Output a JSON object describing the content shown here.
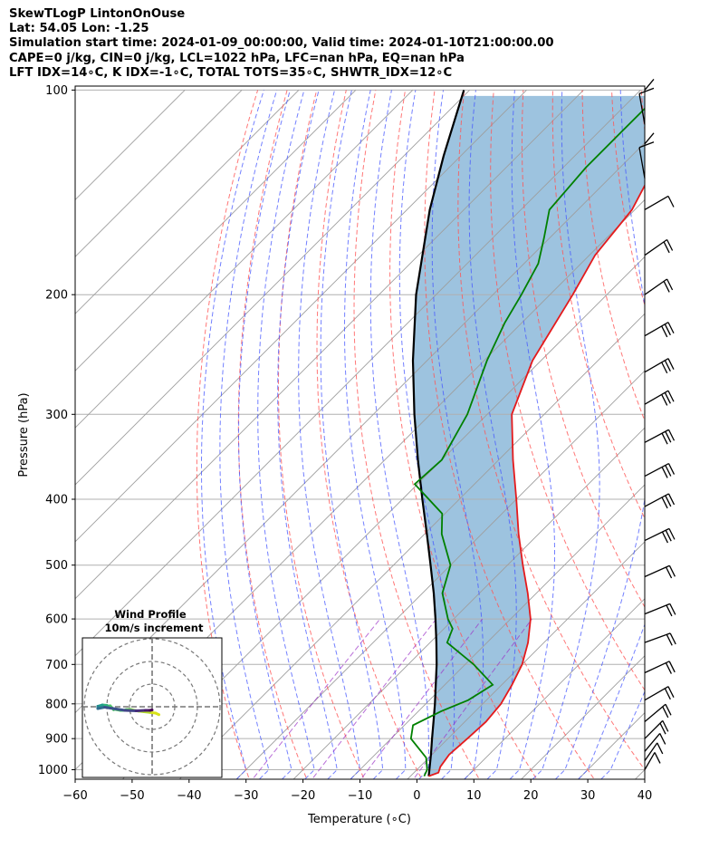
{
  "header": {
    "line1": "SkewTLogP LintonOnOuse",
    "line2": "Lat: 54.05   Lon: -1.25",
    "line3": "Simulation start time: 2024-01-09_00:00:00, Valid time: 2024-01-10T21:00:00.00",
    "line4": "CAPE=0 j/kg, CIN=0 j/kg, LCL=1022 hPa, LFC=nan hPa, EQ=nan hPa",
    "line5": "LFT IDX=14∘C, K IDX=-1∘C, TOTAL TOTS=35∘C, SHWTR_IDX=12∘C"
  },
  "chart_data": {
    "type": "skew-t log-p",
    "xlabel": "Temperature (∘C)",
    "ylabel": "Pressure (hPa)",
    "xlim": [
      -60,
      40
    ],
    "ylim": [
      1050,
      100
    ],
    "x_ticks": [
      "−60",
      "−50",
      "−40",
      "−30",
      "−20",
      "−10",
      "0",
      "10",
      "20",
      "30",
      "40"
    ],
    "x_tick_values": [
      -60,
      -50,
      -40,
      -30,
      -20,
      -10,
      0,
      10,
      20,
      30,
      40
    ],
    "y_ticks": [
      "1000",
      "900",
      "800",
      "700",
      "600",
      "500",
      "400",
      "300",
      "200",
      "100"
    ],
    "y_tick_values": [
      1000,
      900,
      800,
      700,
      600,
      500,
      400,
      300,
      200,
      100
    ],
    "grid": true,
    "colors": {
      "temperature": "#e41a1c",
      "dewpoint": "#008000",
      "parcel": "#000000",
      "cape_fill": "#5b9bc9",
      "isotherm": "#9e9e9e",
      "dry_adiabat": "#ff5555",
      "moist_adiabat": "#4455ff",
      "mixing_ratio": "#9b30c8"
    },
    "temperature_profile": [
      {
        "p": 1022,
        "t": 3.2
      },
      {
        "p": 1010,
        "t": 4.3
      },
      {
        "p": 990,
        "t": 3.6
      },
      {
        "p": 950,
        "t": 3.0
      },
      {
        "p": 900,
        "t": 3.4
      },
      {
        "p": 850,
        "t": 3.7
      },
      {
        "p": 800,
        "t": 3.2
      },
      {
        "p": 750,
        "t": 1.8
      },
      {
        "p": 700,
        "t": 0.0
      },
      {
        "p": 650,
        "t": -2.8
      },
      {
        "p": 600,
        "t": -6.5
      },
      {
        "p": 550,
        "t": -11.5
      },
      {
        "p": 500,
        "t": -17.3
      },
      {
        "p": 450,
        "t": -23.5
      },
      {
        "p": 400,
        "t": -30.0
      },
      {
        "p": 350,
        "t": -37.5
      },
      {
        "p": 300,
        "t": -45.7
      },
      {
        "p": 250,
        "t": -51.5
      },
      {
        "p": 200,
        "t": -56.0
      },
      {
        "p": 175,
        "t": -59.0
      },
      {
        "p": 150,
        "t": -60.5
      },
      {
        "p": 130,
        "t": -64.0
      },
      {
        "p": 115,
        "t": -67.0
      },
      {
        "p": 100,
        "t": -71.0
      }
    ],
    "dewpoint_profile": [
      {
        "p": 1022,
        "t": 2.4
      },
      {
        "p": 1000,
        "t": 1.8
      },
      {
        "p": 960,
        "t": -0.5
      },
      {
        "p": 900,
        "t": -6.5
      },
      {
        "p": 860,
        "t": -8.5
      },
      {
        "p": 820,
        "t": -6.0
      },
      {
        "p": 790,
        "t": -3.2
      },
      {
        "p": 750,
        "t": -1.6
      },
      {
        "p": 700,
        "t": -8.5
      },
      {
        "p": 650,
        "t": -17.0
      },
      {
        "p": 620,
        "t": -18.5
      },
      {
        "p": 600,
        "t": -21.0
      },
      {
        "p": 550,
        "t": -26.5
      },
      {
        "p": 500,
        "t": -30.0
      },
      {
        "p": 450,
        "t": -37.0
      },
      {
        "p": 420,
        "t": -40.5
      },
      {
        "p": 380,
        "t": -50.5
      },
      {
        "p": 350,
        "t": -50.0
      },
      {
        "p": 300,
        "t": -53.5
      },
      {
        "p": 250,
        "t": -59.5
      },
      {
        "p": 220,
        "t": -63.0
      },
      {
        "p": 200,
        "t": -65.0
      },
      {
        "p": 180,
        "t": -67.5
      },
      {
        "p": 165,
        "t": -71.0
      },
      {
        "p": 150,
        "t": -75.0
      },
      {
        "p": 130,
        "t": -76.0
      },
      {
        "p": 115,
        "t": -76.0
      },
      {
        "p": 100,
        "t": -76.0
      }
    ],
    "parcel_profile": [
      {
        "p": 1022,
        "t": 3.2
      },
      {
        "p": 1000,
        "t": 2.2
      },
      {
        "p": 950,
        "t": -0.2
      },
      {
        "p": 900,
        "t": -2.8
      },
      {
        "p": 850,
        "t": -5.5
      },
      {
        "p": 800,
        "t": -8.4
      },
      {
        "p": 750,
        "t": -11.6
      },
      {
        "p": 700,
        "t": -15.0
      },
      {
        "p": 650,
        "t": -18.9
      },
      {
        "p": 600,
        "t": -23.2
      },
      {
        "p": 550,
        "t": -28.0
      },
      {
        "p": 500,
        "t": -33.5
      },
      {
        "p": 450,
        "t": -39.6
      },
      {
        "p": 400,
        "t": -46.5
      },
      {
        "p": 350,
        "t": -54.2
      },
      {
        "p": 300,
        "t": -62.8
      },
      {
        "p": 250,
        "t": -72.5
      },
      {
        "p": 200,
        "t": -83.5
      },
      {
        "p": 150,
        "t": -96.0
      },
      {
        "p": 125,
        "t": -103.0
      },
      {
        "p": 100,
        "t": -111.0
      }
    ],
    "wind_barbs_pressure": [
      100,
      120,
      150,
      175,
      200,
      230,
      260,
      290,
      330,
      370,
      410,
      460,
      520,
      590,
      650,
      720,
      790,
      850,
      900,
      940,
      970,
      1000
    ],
    "hodograph": {
      "title": "Wind Profile",
      "subtitle": "10m/s increment",
      "points": [
        [
          3.0,
          -3.5
        ],
        [
          1.5,
          -2.8
        ],
        [
          -1.0,
          -2.5
        ],
        [
          -3.5,
          -2.2
        ],
        [
          -6.0,
          -1.9
        ],
        [
          -8.0,
          -1.6
        ],
        [
          -9.5,
          -1.2
        ],
        [
          -10.5,
          -1.2
        ],
        [
          -11.5,
          -1.3
        ],
        [
          -12.5,
          -1.6
        ],
        [
          -14.0,
          -1.6
        ],
        [
          -15.5,
          -1.3
        ],
        [
          -16.5,
          -1.1
        ],
        [
          -17.0,
          -1.3
        ],
        [
          -17.5,
          -0.7
        ],
        [
          -18.5,
          0.4
        ],
        [
          -19.5,
          0.3
        ],
        [
          -20.0,
          0.6
        ],
        [
          -22.0,
          0.8
        ],
        [
          -24.0,
          0.2
        ],
        [
          -24.0,
          -0.8
        ],
        [
          -21.0,
          -0.2
        ],
        [
          -12.0,
          -1.6
        ],
        [
          -7.0,
          -1.8
        ],
        [
          -3.0,
          -1.6
        ],
        [
          -1.0,
          -1.6
        ],
        [
          0.0,
          -1.4
        ]
      ]
    }
  }
}
